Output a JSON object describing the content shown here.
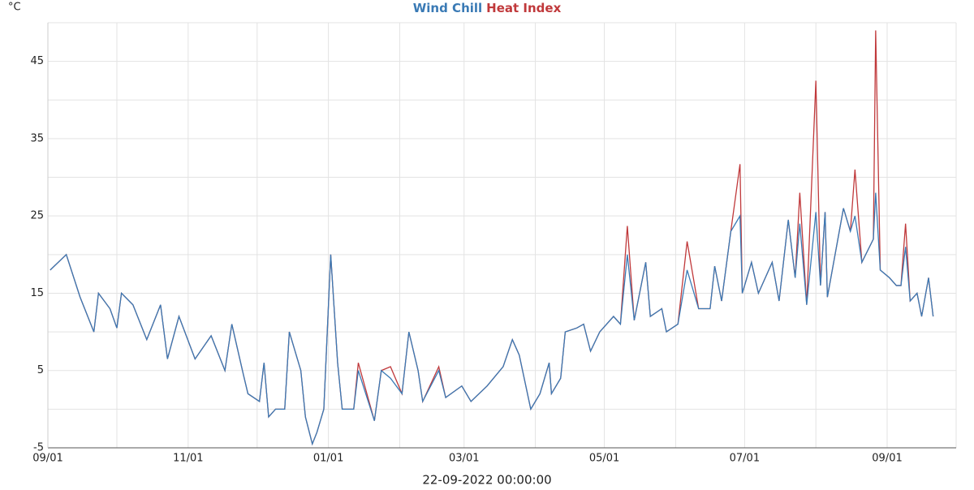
{
  "chart_data": {
    "type": "line",
    "y_label": "°C",
    "x_label": "22-09-2022 00:00:00",
    "x": [
      1,
      8,
      14,
      20,
      22,
      27,
      30,
      32,
      37,
      43,
      49,
      52,
      57,
      64,
      71,
      77,
      80,
      85,
      87,
      92,
      94,
      96,
      99,
      103,
      105,
      110,
      112,
      115,
      117,
      120,
      123,
      126,
      128,
      133,
      135,
      142,
      145,
      149,
      154,
      157,
      161,
      163,
      170,
      173,
      180,
      184,
      191,
      198,
      202,
      205,
      210,
      214,
      218,
      219,
      223,
      225,
      230,
      233,
      236,
      240,
      246,
      249,
      252,
      255,
      260,
      262,
      267,
      269,
      274,
      278,
      283,
      288,
      290,
      293,
      297,
      301,
      302,
      306,
      309,
      315,
      318,
      322,
      325,
      327,
      330,
      334,
      336,
      338,
      339,
      346,
      349,
      351,
      354,
      359,
      360,
      362,
      366,
      369,
      371,
      373,
      375,
      378,
      380,
      383,
      385
    ],
    "series": [
      {
        "name": "Heat Index",
        "color": "#c0393b",
        "values": [
          18,
          20,
          14.5,
          10,
          15,
          13,
          10.5,
          15,
          13.5,
          9,
          13.5,
          6.5,
          12,
          6.5,
          9.5,
          5,
          11,
          4.5,
          2,
          1,
          6,
          -1,
          0,
          0,
          10,
          5,
          -1,
          -4.5,
          -3,
          0,
          20,
          6,
          0,
          0,
          6,
          -1.5,
          5,
          5.5,
          2,
          10,
          5,
          1,
          5.5,
          1.5,
          3,
          1,
          3,
          5.5,
          9,
          7,
          0,
          2,
          6,
          2,
          4,
          10,
          10.5,
          11,
          7.5,
          10,
          12,
          11,
          23.7,
          11.5,
          19,
          12,
          13,
          10,
          11,
          21.7,
          13,
          13,
          18.5,
          14,
          23,
          31.7,
          15,
          19,
          15,
          19,
          14,
          24.5,
          17,
          28,
          13.5,
          42.5,
          16,
          25.5,
          14.5,
          26,
          23,
          31,
          19,
          22,
          49,
          18,
          17,
          16,
          16,
          24,
          14,
          15,
          12,
          17,
          12
        ]
      },
      {
        "name": "Wind Chill",
        "color": "#3a7ab5",
        "values": [
          18,
          20,
          14.5,
          10,
          15,
          13,
          10.5,
          15,
          13.5,
          9,
          13.5,
          6.5,
          12,
          6.5,
          9.5,
          5,
          11,
          4.5,
          2,
          1,
          6,
          -1,
          0,
          0,
          10,
          5,
          -1,
          -4.5,
          -3,
          0,
          20,
          6,
          0,
          0,
          5,
          -1.5,
          5,
          4,
          2,
          10,
          5,
          1,
          5,
          1.5,
          3,
          1,
          3,
          5.5,
          9,
          7,
          0,
          2,
          6,
          2,
          4,
          10,
          10.5,
          11,
          7.5,
          10,
          12,
          11,
          20,
          11.5,
          19,
          12,
          13,
          10,
          11,
          18,
          13,
          13,
          18.5,
          14,
          23,
          25,
          15,
          19,
          15,
          19,
          14,
          24.5,
          17,
          24,
          13.5,
          25.5,
          16,
          25.5,
          14.5,
          26,
          23,
          25,
          19,
          22,
          28,
          18,
          17,
          16,
          16,
          21,
          14,
          15,
          12,
          17,
          12
        ]
      }
    ],
    "xlim": [
      0,
      395
    ],
    "xticks": [
      {
        "value": 0,
        "label": "09/01"
      },
      {
        "value": 61,
        "label": "11/01"
      },
      {
        "value": 122,
        "label": "01/01"
      },
      {
        "value": 181,
        "label": "03/01"
      },
      {
        "value": 242,
        "label": "05/01"
      },
      {
        "value": 303,
        "label": "07/01"
      },
      {
        "value": 365,
        "label": "09/01"
      }
    ],
    "minor_xticks": [
      30,
      91,
      153,
      212,
      273,
      334,
      395
    ],
    "ylim": [
      -5,
      50
    ],
    "yticks": [
      -5,
      5,
      15,
      25,
      35,
      45
    ],
    "minor_yticks": [
      0,
      10,
      20,
      30,
      40,
      50
    ],
    "grid": true
  }
}
